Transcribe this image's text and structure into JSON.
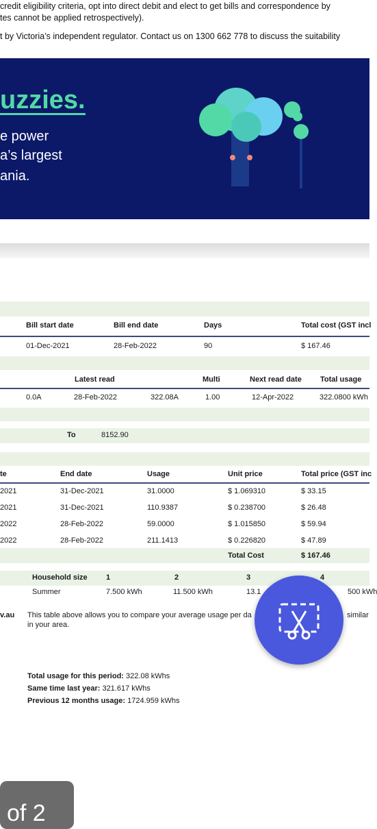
{
  "top_text": [
    "credit eligibility criteria, opt into direct debit and elect to get bills and correspondence by",
    "tes cannot be applied retrospectively).",
    "t by Victoria’s independent regulator. Contact us on 1300 662 778 to discuss the suitability"
  ],
  "banner": {
    "headline": "uzzies.",
    "lines": [
      "e power",
      "a’s largest",
      "ania."
    ]
  },
  "bill_table": {
    "headers": [
      "Bill start date",
      "Bill end date",
      "Days",
      "Total cost (GST incl"
    ],
    "row": [
      "01-Dec-2021",
      "28-Feb-2022",
      "90",
      "$ 167.46"
    ]
  },
  "meter_table": {
    "headers": [
      "Latest read",
      "Multi",
      "Next read date",
      "Total usage"
    ],
    "row": [
      "0.0A",
      "28-Feb-2022",
      "322.08A",
      "1.00",
      "12-Apr-2022",
      "322.0800 kWh"
    ]
  },
  "to_row": {
    "label": "To",
    "value": "8152.90"
  },
  "usage_table": {
    "headers": [
      "te",
      "End date",
      "Usage",
      "Unit price",
      "Total price (GST inc"
    ],
    "rows": [
      [
        "2021",
        "31-Dec-2021",
        "31.0000",
        "$ 1.069310",
        "$ 33.15"
      ],
      [
        "2021",
        "31-Dec-2021",
        "110.9387",
        "$ 0.238700",
        "$ 26.48"
      ],
      [
        "2022",
        "28-Feb-2022",
        "59.0000",
        "$ 1.015850",
        "$ 59.94"
      ],
      [
        "2022",
        "28-Feb-2022",
        "211.1413",
        "$ 0.226820",
        "$ 47.89"
      ]
    ],
    "total_label": "Total Cost",
    "total_value": "$ 167.46"
  },
  "household_table": {
    "headers": [
      "Household size",
      "1",
      "2",
      "3",
      "4"
    ],
    "row": [
      "Summer",
      "7.500 kWh",
      "11.500 kWh",
      "13.1",
      "500 kWh"
    ]
  },
  "note": {
    "site": "v.au",
    "lines": [
      "This table above allows you to compare your average usage per da",
      "in your area."
    ],
    "tail": "similar"
  },
  "totals": [
    {
      "label": "Total usage for this period:",
      "value": " 322.08 kWhs"
    },
    {
      "label": "Same time last year:",
      "value": " 321.617 kWhs"
    },
    {
      "label": "Previous 12 months usage:",
      "value": " 1724.959 kWhs"
    }
  ],
  "page_indicator": "of 2"
}
